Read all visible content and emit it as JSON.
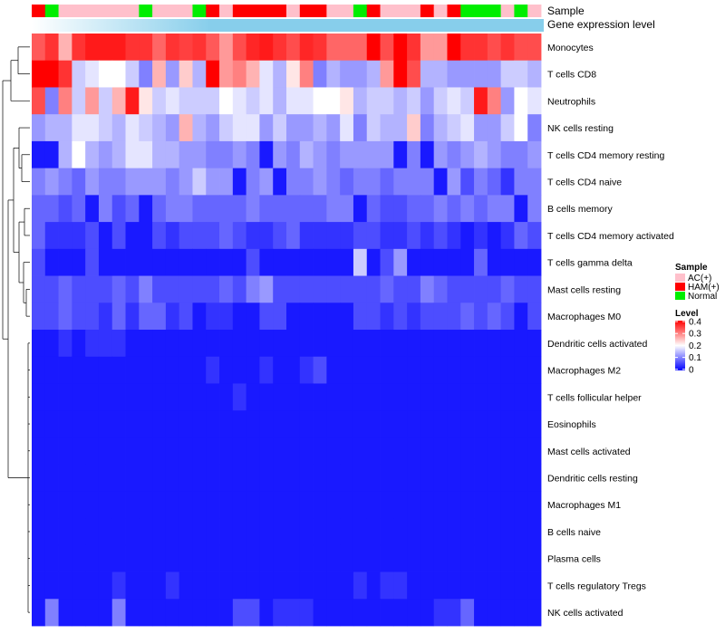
{
  "chart_data": {
    "type": "heatmap",
    "title": "",
    "annotation_labels": [
      "Sample",
      "Gene expression level"
    ],
    "rows": [
      "Monocytes",
      "T cells CD8",
      "Neutrophils",
      "NK cells resting",
      "T cells CD4 memory resting",
      "T cells CD4 naive",
      "B cells memory",
      "T cells CD4 memory activated",
      "T cells gamma delta",
      "Mast cells resting",
      "Macrophages M0",
      "Dendritic cells activated",
      "Macrophages M2",
      "T cells follicular helper",
      "Eosinophils",
      "Mast cells activated",
      "Dendritic cells resting",
      "Macrophages M1",
      "B cells naive",
      "Plasma cells",
      "T cells regulatory  Tregs",
      "NK cells activated"
    ],
    "sample_groups": [
      "HAM(+)",
      "Normal",
      "AC(+)",
      "AC(+)",
      "AC(+)",
      "AC(+)",
      "AC(+)",
      "AC(+)",
      "Normal",
      "AC(+)",
      "AC(+)",
      "AC(+)",
      "Normal",
      "HAM(+)",
      "AC(+)",
      "HAM(+)",
      "HAM(+)",
      "HAM(+)",
      "HAM(+)",
      "AC(+)",
      "HAM(+)",
      "HAM(+)",
      "AC(+)",
      "AC(+)",
      "Normal",
      "HAM(+)",
      "AC(+)",
      "AC(+)",
      "AC(+)",
      "HAM(+)",
      "AC(+)",
      "HAM(+)",
      "Normal",
      "Normal",
      "Normal",
      "AC(+)",
      "Normal",
      "AC(+)"
    ],
    "values": [
      [
        0.33,
        0.36,
        0.26,
        0.36,
        0.38,
        0.38,
        0.38,
        0.36,
        0.36,
        0.32,
        0.36,
        0.35,
        0.36,
        0.33,
        0.28,
        0.34,
        0.37,
        0.38,
        0.36,
        0.34,
        0.37,
        0.36,
        0.32,
        0.32,
        0.32,
        0.4,
        0.34,
        0.4,
        0.36,
        0.28,
        0.28,
        0.4,
        0.36,
        0.36,
        0.34,
        0.36,
        0.34,
        0.34
      ],
      [
        0.4,
        0.4,
        0.36,
        0.16,
        0.18,
        0.2,
        0.2,
        0.16,
        0.1,
        0.26,
        0.12,
        0.24,
        0.14,
        0.4,
        0.28,
        0.3,
        0.26,
        0.18,
        0.14,
        0.22,
        0.3,
        0.1,
        0.14,
        0.12,
        0.12,
        0.14,
        0.28,
        0.4,
        0.34,
        0.14,
        0.14,
        0.12,
        0.12,
        0.12,
        0.12,
        0.16,
        0.16,
        0.14
      ],
      [
        0.34,
        0.1,
        0.3,
        0.16,
        0.28,
        0.16,
        0.26,
        0.38,
        0.22,
        0.16,
        0.18,
        0.16,
        0.16,
        0.16,
        0.2,
        0.18,
        0.16,
        0.18,
        0.14,
        0.18,
        0.18,
        0.2,
        0.2,
        0.22,
        0.14,
        0.16,
        0.16,
        0.14,
        0.16,
        0.12,
        0.16,
        0.18,
        0.16,
        0.38,
        0.3,
        0.12,
        0.2,
        0.18
      ],
      [
        0.12,
        0.14,
        0.14,
        0.18,
        0.18,
        0.16,
        0.14,
        0.18,
        0.16,
        0.14,
        0.12,
        0.26,
        0.14,
        0.12,
        0.16,
        0.18,
        0.18,
        0.12,
        0.16,
        0.12,
        0.12,
        0.14,
        0.12,
        0.18,
        0.1,
        0.16,
        0.14,
        0.14,
        0.24,
        0.1,
        0.14,
        0.16,
        0.18,
        0.12,
        0.12,
        0.16,
        0.2,
        0.1
      ],
      [
        0.02,
        0.02,
        0.14,
        0.2,
        0.14,
        0.12,
        0.14,
        0.18,
        0.18,
        0.14,
        0.14,
        0.12,
        0.12,
        0.1,
        0.1,
        0.12,
        0.1,
        0.02,
        0.12,
        0.1,
        0.14,
        0.12,
        0.1,
        0.12,
        0.12,
        0.12,
        0.12,
        0.02,
        0.1,
        0.02,
        0.12,
        0.1,
        0.12,
        0.14,
        0.12,
        0.1,
        0.1,
        0.12
      ],
      [
        0.1,
        0.12,
        0.1,
        0.08,
        0.12,
        0.1,
        0.1,
        0.12,
        0.12,
        0.12,
        0.1,
        0.12,
        0.16,
        0.12,
        0.12,
        0.02,
        0.1,
        0.12,
        0.02,
        0.1,
        0.1,
        0.12,
        0.1,
        0.08,
        0.1,
        0.1,
        0.08,
        0.1,
        0.1,
        0.1,
        0.02,
        0.12,
        0.06,
        0.1,
        0.08,
        0.04,
        0.1,
        0.1
      ],
      [
        0.08,
        0.08,
        0.06,
        0.08,
        0.02,
        0.1,
        0.06,
        0.08,
        0.02,
        0.08,
        0.1,
        0.1,
        0.08,
        0.08,
        0.08,
        0.08,
        0.1,
        0.08,
        0.08,
        0.08,
        0.08,
        0.08,
        0.1,
        0.1,
        0.02,
        0.08,
        0.06,
        0.06,
        0.08,
        0.08,
        0.1,
        0.08,
        0.1,
        0.08,
        0.1,
        0.1,
        0.02,
        0.1
      ],
      [
        0.08,
        0.04,
        0.04,
        0.04,
        0.06,
        0.02,
        0.06,
        0.02,
        0.02,
        0.06,
        0.04,
        0.06,
        0.06,
        0.06,
        0.08,
        0.06,
        0.04,
        0.04,
        0.06,
        0.08,
        0.04,
        0.04,
        0.04,
        0.04,
        0.06,
        0.06,
        0.04,
        0.04,
        0.06,
        0.04,
        0.06,
        0.04,
        0.02,
        0.04,
        0.02,
        0.04,
        0.08,
        0.06
      ],
      [
        0.06,
        0.02,
        0.02,
        0.02,
        0.06,
        0.02,
        0.02,
        0.02,
        0.02,
        0.02,
        0.02,
        0.02,
        0.02,
        0.02,
        0.02,
        0.02,
        0.06,
        0.02,
        0.02,
        0.02,
        0.02,
        0.02,
        0.02,
        0.02,
        0.16,
        0.02,
        0.06,
        0.12,
        0.02,
        0.02,
        0.02,
        0.02,
        0.02,
        0.08,
        0.02,
        0.02,
        0.02,
        0.02
      ],
      [
        0.06,
        0.06,
        0.08,
        0.06,
        0.06,
        0.06,
        0.08,
        0.06,
        0.1,
        0.06,
        0.06,
        0.06,
        0.06,
        0.06,
        0.08,
        0.06,
        0.1,
        0.12,
        0.06,
        0.06,
        0.06,
        0.06,
        0.06,
        0.06,
        0.06,
        0.06,
        0.08,
        0.06,
        0.06,
        0.1,
        0.08,
        0.06,
        0.06,
        0.06,
        0.06,
        0.08,
        0.06,
        0.06
      ],
      [
        0.06,
        0.06,
        0.08,
        0.06,
        0.06,
        0.04,
        0.08,
        0.04,
        0.08,
        0.08,
        0.04,
        0.06,
        0.02,
        0.04,
        0.04,
        0.02,
        0.02,
        0.06,
        0.06,
        0.02,
        0.02,
        0.02,
        0.02,
        0.02,
        0.06,
        0.06,
        0.04,
        0.06,
        0.04,
        0.06,
        0.06,
        0.06,
        0.08,
        0.06,
        0.08,
        0.06,
        0.02,
        0.06
      ],
      [
        0.02,
        0.02,
        0.04,
        0.02,
        0.04,
        0.04,
        0.04,
        0.02,
        0.02,
        0.02,
        0.02,
        0.02,
        0.02,
        0.02,
        0.02,
        0.02,
        0.02,
        0.02,
        0.02,
        0.02,
        0.02,
        0.02,
        0.02,
        0.02,
        0.02,
        0.02,
        0.02,
        0.02,
        0.02,
        0.02,
        0.02,
        0.02,
        0.02,
        0.02,
        0.02,
        0.02,
        0.02,
        0.02
      ],
      [
        0.02,
        0.02,
        0.02,
        0.02,
        0.02,
        0.02,
        0.02,
        0.02,
        0.02,
        0.02,
        0.02,
        0.02,
        0.02,
        0.04,
        0.02,
        0.02,
        0.02,
        0.04,
        0.02,
        0.02,
        0.04,
        0.06,
        0.02,
        0.02,
        0.02,
        0.02,
        0.02,
        0.02,
        0.02,
        0.02,
        0.02,
        0.02,
        0.02,
        0.02,
        0.02,
        0.02,
        0.02,
        0.02
      ],
      [
        0.02,
        0.02,
        0.02,
        0.02,
        0.02,
        0.02,
        0.02,
        0.02,
        0.02,
        0.02,
        0.02,
        0.02,
        0.02,
        0.02,
        0.02,
        0.04,
        0.02,
        0.02,
        0.02,
        0.02,
        0.02,
        0.02,
        0.02,
        0.02,
        0.02,
        0.02,
        0.02,
        0.02,
        0.02,
        0.02,
        0.02,
        0.02,
        0.02,
        0.02,
        0.02,
        0.02,
        0.02,
        0.02
      ],
      [
        0.02,
        0.02,
        0.02,
        0.02,
        0.02,
        0.02,
        0.02,
        0.02,
        0.02,
        0.02,
        0.02,
        0.02,
        0.02,
        0.02,
        0.02,
        0.02,
        0.02,
        0.02,
        0.02,
        0.02,
        0.02,
        0.02,
        0.02,
        0.02,
        0.02,
        0.02,
        0.02,
        0.02,
        0.02,
        0.02,
        0.02,
        0.02,
        0.02,
        0.02,
        0.02,
        0.02,
        0.02,
        0.02
      ],
      [
        0.02,
        0.02,
        0.02,
        0.02,
        0.02,
        0.02,
        0.02,
        0.02,
        0.02,
        0.02,
        0.02,
        0.02,
        0.02,
        0.02,
        0.02,
        0.02,
        0.02,
        0.02,
        0.02,
        0.02,
        0.02,
        0.02,
        0.02,
        0.02,
        0.02,
        0.02,
        0.02,
        0.02,
        0.02,
        0.02,
        0.02,
        0.02,
        0.02,
        0.02,
        0.02,
        0.02,
        0.02,
        0.02
      ],
      [
        0.02,
        0.02,
        0.02,
        0.02,
        0.02,
        0.02,
        0.02,
        0.02,
        0.02,
        0.02,
        0.02,
        0.02,
        0.02,
        0.02,
        0.02,
        0.02,
        0.02,
        0.02,
        0.02,
        0.02,
        0.02,
        0.02,
        0.02,
        0.02,
        0.02,
        0.02,
        0.02,
        0.02,
        0.02,
        0.02,
        0.02,
        0.02,
        0.02,
        0.02,
        0.02,
        0.02,
        0.02,
        0.02
      ],
      [
        0.02,
        0.02,
        0.02,
        0.02,
        0.02,
        0.02,
        0.02,
        0.02,
        0.02,
        0.02,
        0.02,
        0.02,
        0.02,
        0.02,
        0.02,
        0.02,
        0.02,
        0.02,
        0.02,
        0.02,
        0.02,
        0.02,
        0.02,
        0.02,
        0.02,
        0.02,
        0.02,
        0.02,
        0.02,
        0.02,
        0.02,
        0.02,
        0.02,
        0.02,
        0.02,
        0.02,
        0.02,
        0.02
      ],
      [
        0.02,
        0.02,
        0.02,
        0.02,
        0.02,
        0.02,
        0.02,
        0.02,
        0.02,
        0.02,
        0.02,
        0.02,
        0.02,
        0.02,
        0.02,
        0.02,
        0.02,
        0.02,
        0.02,
        0.02,
        0.02,
        0.02,
        0.02,
        0.02,
        0.02,
        0.02,
        0.02,
        0.02,
        0.02,
        0.02,
        0.02,
        0.02,
        0.02,
        0.02,
        0.02,
        0.02,
        0.02,
        0.02
      ],
      [
        0.02,
        0.02,
        0.02,
        0.02,
        0.02,
        0.02,
        0.02,
        0.02,
        0.02,
        0.02,
        0.02,
        0.02,
        0.02,
        0.02,
        0.02,
        0.02,
        0.02,
        0.02,
        0.02,
        0.02,
        0.02,
        0.02,
        0.02,
        0.02,
        0.02,
        0.02,
        0.02,
        0.02,
        0.02,
        0.02,
        0.02,
        0.02,
        0.02,
        0.02,
        0.02,
        0.02,
        0.02,
        0.02
      ],
      [
        0.02,
        0.02,
        0.02,
        0.02,
        0.02,
        0.02,
        0.04,
        0.02,
        0.02,
        0.02,
        0.04,
        0.02,
        0.02,
        0.02,
        0.02,
        0.02,
        0.02,
        0.02,
        0.02,
        0.02,
        0.02,
        0.02,
        0.02,
        0.02,
        0.04,
        0.02,
        0.04,
        0.04,
        0.02,
        0.02,
        0.02,
        0.02,
        0.02,
        0.02,
        0.02,
        0.02,
        0.02,
        0.02
      ],
      [
        0.02,
        0.1,
        0.02,
        0.02,
        0.02,
        0.02,
        0.1,
        0.02,
        0.02,
        0.02,
        0.02,
        0.02,
        0.02,
        0.02,
        0.02,
        0.06,
        0.06,
        0.02,
        0.04,
        0.04,
        0.04,
        0.02,
        0.02,
        0.02,
        0.02,
        0.02,
        0.02,
        0.02,
        0.02,
        0.02,
        0.04,
        0.04,
        0.08,
        0.02,
        0.02,
        0.02,
        0.02,
        0.02
      ]
    ],
    "legend": {
      "sample_title": "Sample",
      "groups": [
        {
          "name": "AC(+)",
          "color": "#ffc0cb"
        },
        {
          "name": "HAM(+)",
          "color": "#ff0000"
        },
        {
          "name": "Normal",
          "color": "#00ee00"
        }
      ],
      "level_title": "Level",
      "level_ticks": [
        "0.4",
        "0.3",
        "0.2",
        "0.1",
        "0"
      ],
      "level_range": [
        0,
        0.4
      ],
      "level_colors": [
        "#0000ff",
        "#ffffff",
        "#ff0000"
      ]
    },
    "expression_bar_color": "#87ceeb",
    "dendrogram": "rows"
  }
}
